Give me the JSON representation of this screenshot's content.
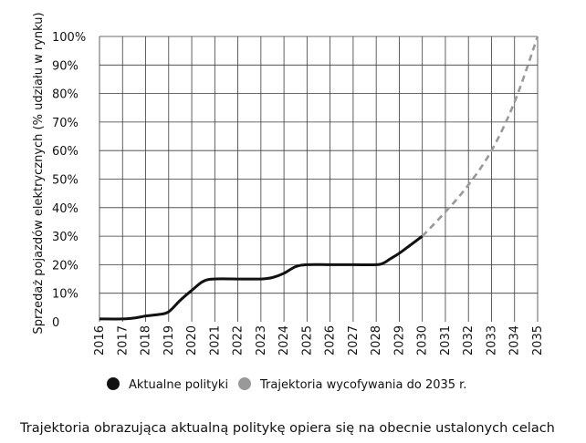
{
  "chart_data": {
    "type": "line",
    "title": "",
    "xlabel": "",
    "ylabel": "Sprzedaż pojazdów elektrycznych (% udziału w rynku)",
    "x": [
      2016,
      2017,
      2018,
      2019,
      2020,
      2021,
      2022,
      2023,
      2024,
      2025,
      2026,
      2027,
      2028,
      2029,
      2030,
      2031,
      2032,
      2033,
      2034,
      2035
    ],
    "x_tick_labels": [
      "2016",
      "2017",
      "2018",
      "2019",
      "2020",
      "2021",
      "2022",
      "2023",
      "2024",
      "2025",
      "2026",
      "2027",
      "2028",
      "2029",
      "2030",
      "2031",
      "2032",
      "2033",
      "2034",
      "2035"
    ],
    "y_tick_labels": [
      "0",
      "10%",
      "20%",
      "30%",
      "40%",
      "50%",
      "60%",
      "70%",
      "80%",
      "90%",
      "100%"
    ],
    "ylim": [
      0,
      100
    ],
    "xlim": [
      2016,
      2035
    ],
    "grid": true,
    "series": [
      {
        "name": "Aktualne polityki",
        "color": "#111111",
        "style": "solid",
        "points": [
          [
            2016,
            1
          ],
          [
            2017,
            1
          ],
          [
            2017.5,
            1.3
          ],
          [
            2018,
            2
          ],
          [
            2018.6,
            2.6
          ],
          [
            2019,
            3.5
          ],
          [
            2019.5,
            7.5
          ],
          [
            2020,
            11
          ],
          [
            2020.5,
            14.2
          ],
          [
            2021,
            15
          ],
          [
            2022,
            15
          ],
          [
            2023,
            15
          ],
          [
            2023.5,
            15.5
          ],
          [
            2024,
            17
          ],
          [
            2024.5,
            19.3
          ],
          [
            2025,
            20
          ],
          [
            2026,
            20
          ],
          [
            2027,
            20
          ],
          [
            2028,
            20
          ],
          [
            2028.3,
            20.5
          ],
          [
            2028.6,
            22
          ],
          [
            2029,
            24
          ],
          [
            2029.5,
            27
          ],
          [
            2030,
            30
          ]
        ]
      },
      {
        "name": "Trajektoria wycofywania do 2035 r.",
        "color": "#999999",
        "style": "dashed",
        "points": [
          [
            2030,
            30
          ],
          [
            2031,
            38.5
          ],
          [
            2032,
            48
          ],
          [
            2033,
            60
          ],
          [
            2034,
            77
          ],
          [
            2035,
            100
          ]
        ]
      }
    ],
    "legend": {
      "placement": "bottom",
      "items": [
        {
          "label": "Aktualne polityki",
          "color": "#111111"
        },
        {
          "label": "Trajektoria wycofywania do 2035 r.",
          "color": "#999999"
        }
      ]
    }
  },
  "caption": "Trajektoria obrazująca aktualną politykę opiera się na obecnie ustalonych celach"
}
